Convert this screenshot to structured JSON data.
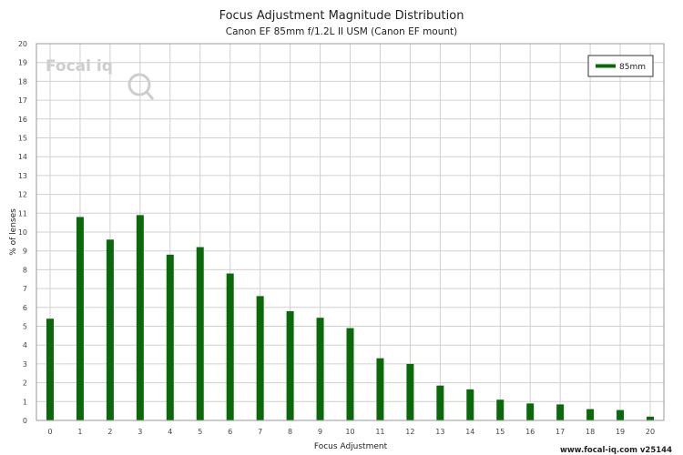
{
  "colors": {
    "series": "#0a6a0a",
    "grid": "#d0d0d0",
    "axis": "#999999"
  },
  "logo": {
    "text": "Focal iq",
    "icon": "focal-iq-logo"
  },
  "footer_text": "www.focal-iq.com  v25144",
  "chart_data": {
    "type": "bar",
    "title": "Focus Adjustment Magnitude Distribution",
    "subtitle": "Canon EF 85mm f/1.2L II USM (Canon EF mount)",
    "xlabel": "Focus Adjustment",
    "ylabel": "% of lenses",
    "categories": [
      "0",
      "1",
      "2",
      "3",
      "4",
      "5",
      "6",
      "7",
      "8",
      "9",
      "10",
      "11",
      "12",
      "13",
      "14",
      "15",
      "16",
      "17",
      "18",
      "19",
      "20"
    ],
    "series": [
      {
        "name": "85mm",
        "values": [
          5.4,
          10.8,
          9.6,
          10.9,
          8.8,
          9.2,
          7.8,
          6.6,
          5.8,
          5.45,
          4.9,
          3.3,
          3.0,
          1.85,
          1.65,
          1.1,
          0.9,
          0.85,
          0.6,
          0.55,
          0.2
        ]
      }
    ],
    "ylim": [
      0,
      20
    ],
    "yticks": [
      "0",
      "1",
      "2",
      "3",
      "4",
      "5",
      "6",
      "7",
      "8",
      "9",
      "10",
      "11",
      "12",
      "13",
      "14",
      "15",
      "16",
      "17",
      "18",
      "19",
      "20"
    ],
    "grid": true,
    "legend_position": "top-right"
  }
}
